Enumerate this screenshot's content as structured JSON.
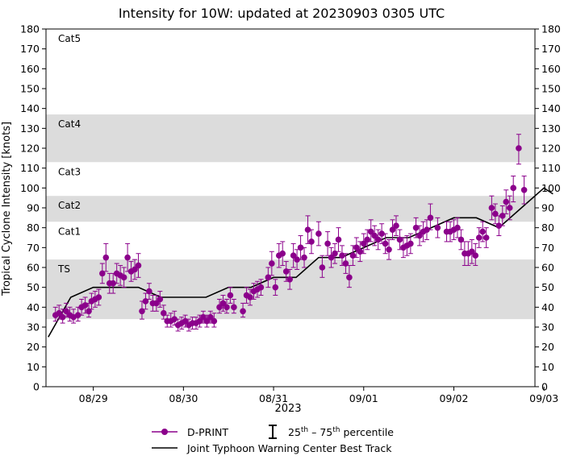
{
  "chart_data": {
    "type": "scatter",
    "title": "Intensity for 10W: updated at 20230903 0305 UTC",
    "xlabel": "2023",
    "ylabel": "Tropical Cyclone Intensity [knots]",
    "ylim": [
      0,
      180
    ],
    "yticks": [
      0,
      10,
      20,
      30,
      40,
      50,
      60,
      70,
      80,
      90,
      100,
      110,
      120,
      130,
      140,
      150,
      160,
      170,
      180
    ],
    "xlim": [
      -0.525,
      4.9
    ],
    "xticks": [
      {
        "label": "08/29",
        "x": 0
      },
      {
        "label": "08/30",
        "x": 1
      },
      {
        "label": "08/31",
        "x": 2
      },
      {
        "label": "09/01",
        "x": 3
      },
      {
        "label": "09/02",
        "x": 4
      },
      {
        "label": "09/03",
        "x": 5
      }
    ],
    "category_bands": [
      {
        "label": "Cat5",
        "from": 137,
        "to": 180,
        "shaded": false
      },
      {
        "label": "Cat4",
        "from": 113,
        "to": 137,
        "shaded": true
      },
      {
        "label": "Cat3",
        "from": 96,
        "to": 113,
        "shaded": false
      },
      {
        "label": "Cat2",
        "from": 83,
        "to": 96,
        "shaded": true
      },
      {
        "label": "Cat1",
        "from": 64,
        "to": 83,
        "shaded": false
      },
      {
        "label": "TS",
        "from": 34,
        "to": 64,
        "shaded": true
      }
    ],
    "legend": {
      "placement": "below",
      "dprint_label": "D-PRINT",
      "percentile_base": "25",
      "percentile_sup1": "th",
      "percentile_mid": " – 75",
      "percentile_sup2": "th",
      "percentile_end": " percentile",
      "best_track_label": "Joint Typhoon Warning Center Best Track"
    },
    "series": [
      {
        "name": "Joint Typhoon Warning Center Best Track",
        "color": "#000000",
        "points": [
          [
            -0.5,
            25
          ],
          [
            -0.25,
            45
          ],
          [
            0,
            50
          ],
          [
            0.25,
            50
          ],
          [
            0.5,
            50
          ],
          [
            0.75,
            45
          ],
          [
            1,
            45
          ],
          [
            1.25,
            45
          ],
          [
            1.5,
            50
          ],
          [
            1.75,
            50
          ],
          [
            2,
            55
          ],
          [
            2.25,
            55
          ],
          [
            2.5,
            65
          ],
          [
            2.75,
            65
          ],
          [
            3,
            70
          ],
          [
            3.25,
            75
          ],
          [
            3.5,
            75
          ],
          [
            3.75,
            80
          ],
          [
            4,
            85
          ],
          [
            4.25,
            85
          ],
          [
            4.5,
            80
          ],
          [
            4.75,
            90
          ],
          [
            5,
            100
          ],
          [
            5.1,
            97
          ]
        ]
      },
      {
        "name": "D-PRINT",
        "color": "#8b008b",
        "points": [
          [
            -0.42,
            36,
            33,
            40
          ],
          [
            -0.38,
            37,
            34,
            41
          ],
          [
            -0.34,
            35,
            32,
            39
          ],
          [
            -0.3,
            38,
            35,
            42
          ],
          [
            -0.26,
            36,
            33,
            40
          ],
          [
            -0.22,
            35,
            32,
            39
          ],
          [
            -0.17,
            36,
            33,
            40
          ],
          [
            -0.13,
            40,
            36,
            44
          ],
          [
            -0.09,
            41,
            37,
            45
          ],
          [
            -0.05,
            38,
            35,
            42
          ],
          [
            -0.02,
            43,
            39,
            47
          ],
          [
            0.02,
            44,
            40,
            48
          ],
          [
            0.06,
            45,
            41,
            49
          ],
          [
            0.1,
            57,
            52,
            62
          ],
          [
            0.14,
            65,
            58,
            72
          ],
          [
            0.18,
            52,
            47,
            57
          ],
          [
            0.22,
            52,
            47,
            57
          ],
          [
            0.26,
            57,
            52,
            62
          ],
          [
            0.3,
            56,
            51,
            61
          ],
          [
            0.34,
            55,
            50,
            60
          ],
          [
            0.38,
            65,
            58,
            72
          ],
          [
            0.42,
            58,
            53,
            63
          ],
          [
            0.46,
            59,
            54,
            64
          ],
          [
            0.5,
            61,
            55,
            67
          ],
          [
            0.54,
            38,
            34,
            43
          ],
          [
            0.58,
            43,
            39,
            47
          ],
          [
            0.62,
            48,
            44,
            52
          ],
          [
            0.66,
            42,
            38,
            46
          ],
          [
            0.7,
            42,
            38,
            46
          ],
          [
            0.74,
            44,
            40,
            48
          ],
          [
            0.78,
            37,
            34,
            41
          ],
          [
            0.82,
            33,
            30,
            36
          ],
          [
            0.86,
            33,
            30,
            37
          ],
          [
            0.9,
            34,
            31,
            38
          ],
          [
            0.94,
            31,
            28,
            34
          ],
          [
            0.98,
            32,
            29,
            35
          ],
          [
            1.02,
            33,
            30,
            36
          ],
          [
            1.06,
            31,
            28,
            34
          ],
          [
            1.1,
            32,
            29,
            35
          ],
          [
            1.14,
            32,
            29,
            35
          ],
          [
            1.18,
            33,
            30,
            36
          ],
          [
            1.22,
            35,
            32,
            38
          ],
          [
            1.26,
            33,
            30,
            36
          ],
          [
            1.3,
            35,
            32,
            38
          ],
          [
            1.34,
            33,
            30,
            37
          ],
          [
            1.4,
            40,
            37,
            44
          ],
          [
            1.44,
            42,
            38,
            46
          ],
          [
            1.48,
            40,
            37,
            44
          ],
          [
            1.52,
            46,
            42,
            50
          ],
          [
            1.56,
            40,
            37,
            44
          ],
          [
            1.66,
            38,
            35,
            42
          ],
          [
            1.7,
            46,
            42,
            50
          ],
          [
            1.74,
            45,
            41,
            49
          ],
          [
            1.78,
            48,
            44,
            52
          ],
          [
            1.82,
            49,
            45,
            53
          ],
          [
            1.86,
            50,
            46,
            54
          ],
          [
            1.94,
            55,
            50,
            60
          ],
          [
            1.98,
            62,
            56,
            68
          ],
          [
            2.02,
            50,
            46,
            54
          ],
          [
            2.06,
            66,
            60,
            72
          ],
          [
            2.1,
            67,
            61,
            73
          ],
          [
            2.14,
            58,
            53,
            63
          ],
          [
            2.18,
            54,
            49,
            59
          ],
          [
            2.22,
            66,
            60,
            72
          ],
          [
            2.26,
            64,
            59,
            69
          ],
          [
            2.3,
            70,
            64,
            76
          ],
          [
            2.34,
            65,
            60,
            70
          ],
          [
            2.38,
            79,
            72,
            86
          ],
          [
            2.42,
            73,
            67,
            79
          ],
          [
            2.5,
            77,
            71,
            83
          ],
          [
            2.54,
            60,
            55,
            66
          ],
          [
            2.6,
            72,
            66,
            78
          ],
          [
            2.64,
            65,
            60,
            70
          ],
          [
            2.68,
            67,
            62,
            72
          ],
          [
            2.72,
            74,
            68,
            80
          ],
          [
            2.76,
            66,
            61,
            71
          ],
          [
            2.8,
            62,
            57,
            67
          ],
          [
            2.84,
            55,
            50,
            61
          ],
          [
            2.88,
            66,
            61,
            71
          ],
          [
            2.92,
            70,
            65,
            75
          ],
          [
            2.96,
            68,
            63,
            73
          ],
          [
            3.0,
            72,
            67,
            77
          ],
          [
            3.04,
            74,
            69,
            79
          ],
          [
            3.08,
            78,
            73,
            84
          ],
          [
            3.12,
            76,
            71,
            81
          ],
          [
            3.16,
            74,
            69,
            79
          ],
          [
            3.2,
            77,
            72,
            82
          ],
          [
            3.24,
            72,
            67,
            77
          ],
          [
            3.28,
            69,
            64,
            74
          ],
          [
            3.32,
            79,
            74,
            84
          ],
          [
            3.36,
            81,
            76,
            86
          ],
          [
            3.4,
            74,
            69,
            79
          ],
          [
            3.44,
            70,
            65,
            75
          ],
          [
            3.48,
            71,
            66,
            76
          ],
          [
            3.52,
            72,
            67,
            77
          ],
          [
            3.58,
            80,
            75,
            85
          ],
          [
            3.62,
            76,
            71,
            81
          ],
          [
            3.66,
            78,
            73,
            83
          ],
          [
            3.7,
            79,
            74,
            84
          ],
          [
            3.74,
            85,
            79,
            92
          ],
          [
            3.82,
            80,
            75,
            85
          ],
          [
            3.92,
            78,
            73,
            83
          ],
          [
            3.96,
            78,
            73,
            83
          ],
          [
            4.0,
            79,
            74,
            84
          ],
          [
            4.04,
            80,
            75,
            85
          ],
          [
            4.08,
            74,
            69,
            79
          ],
          [
            4.12,
            67,
            61,
            73
          ],
          [
            4.16,
            67,
            61,
            73
          ],
          [
            4.2,
            68,
            62,
            74
          ],
          [
            4.24,
            66,
            61,
            72
          ],
          [
            4.28,
            75,
            70,
            80
          ],
          [
            4.32,
            78,
            73,
            83
          ],
          [
            4.36,
            75,
            70,
            80
          ],
          [
            4.42,
            90,
            84,
            96
          ],
          [
            4.46,
            87,
            82,
            92
          ],
          [
            4.5,
            81,
            76,
            86
          ],
          [
            4.54,
            86,
            81,
            91
          ],
          [
            4.58,
            93,
            87,
            99
          ],
          [
            4.62,
            90,
            84,
            96
          ],
          [
            4.66,
            100,
            93,
            106
          ],
          [
            4.72,
            120,
            112,
            127
          ],
          [
            4.78,
            99,
            92,
            106
          ]
        ]
      }
    ]
  }
}
